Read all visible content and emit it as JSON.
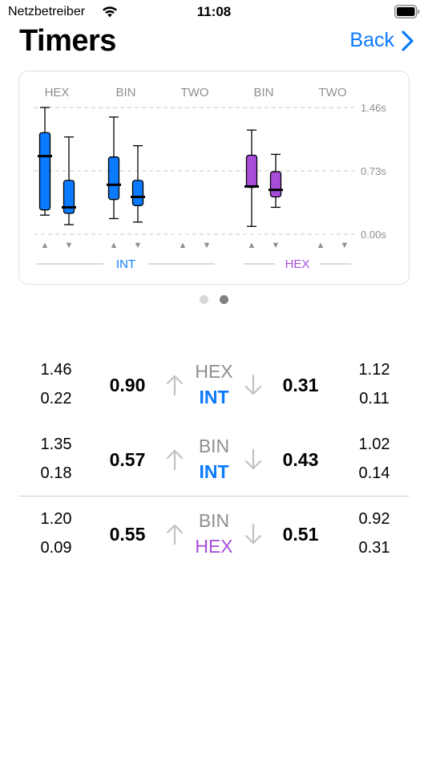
{
  "status_bar": {
    "carrier": "Netzbetreiber",
    "time": "11:08"
  },
  "nav": {
    "title": "Timers",
    "back_label": "Back"
  },
  "colors": {
    "accent_blue": "#0a7aff",
    "accent_purple": "#a64dd9",
    "gray_label": "#8e8e93"
  },
  "chart_data": {
    "type": "boxplot",
    "column_labels": [
      "HEX",
      "BIN",
      "TWO",
      "BIN",
      "TWO"
    ],
    "y_ticks": [
      "1.46s",
      "0.73s",
      "0.00s"
    ],
    "ylim": [
      0,
      1.46
    ],
    "group_labels": [
      "INT",
      "HEX"
    ],
    "sort_markers": [
      "▲",
      "▼"
    ],
    "series": [
      {
        "group": "INT",
        "column": "HEX",
        "dir": "up",
        "color": "#0a7aff",
        "min": 0.22,
        "q1": 0.28,
        "median": 0.9,
        "q3": 1.17,
        "max": 1.46
      },
      {
        "group": "INT",
        "column": "HEX",
        "dir": "down",
        "color": "#0a7aff",
        "min": 0.11,
        "q1": 0.24,
        "median": 0.31,
        "q3": 0.62,
        "max": 1.12
      },
      {
        "group": "INT",
        "column": "BIN",
        "dir": "up",
        "color": "#0a7aff",
        "min": 0.18,
        "q1": 0.4,
        "median": 0.57,
        "q3": 0.89,
        "max": 1.35
      },
      {
        "group": "INT",
        "column": "BIN",
        "dir": "down",
        "color": "#0a7aff",
        "min": 0.14,
        "q1": 0.33,
        "median": 0.43,
        "q3": 0.62,
        "max": 1.02
      },
      {
        "group": "HEX",
        "column": "BIN",
        "dir": "up",
        "color": "#a64dd9",
        "min": 0.09,
        "q1": 0.54,
        "median": 0.55,
        "q3": 0.91,
        "max": 1.2
      },
      {
        "group": "HEX",
        "column": "BIN",
        "dir": "down",
        "color": "#a64dd9",
        "min": 0.31,
        "q1": 0.43,
        "median": 0.51,
        "q3": 0.72,
        "max": 0.92
      }
    ]
  },
  "pager": {
    "count": 2,
    "active": 1
  },
  "rows": [
    {
      "left_max": "1.46",
      "left_min": "0.22",
      "left_median": "0.90",
      "top_label": "HEX",
      "bottom_label": "INT",
      "bottom_kind": "int",
      "right_median": "0.31",
      "right_max": "1.12",
      "right_min": "0.11"
    },
    {
      "left_max": "1.35",
      "left_min": "0.18",
      "left_median": "0.57",
      "top_label": "BIN",
      "bottom_label": "INT",
      "bottom_kind": "int",
      "right_median": "0.43",
      "right_max": "1.02",
      "right_min": "0.14"
    },
    {
      "left_max": "1.20",
      "left_min": "0.09",
      "left_median": "0.55",
      "top_label": "BIN",
      "bottom_label": "HEX",
      "bottom_kind": "hex",
      "right_median": "0.51",
      "right_max": "0.92",
      "right_min": "0.31"
    }
  ]
}
